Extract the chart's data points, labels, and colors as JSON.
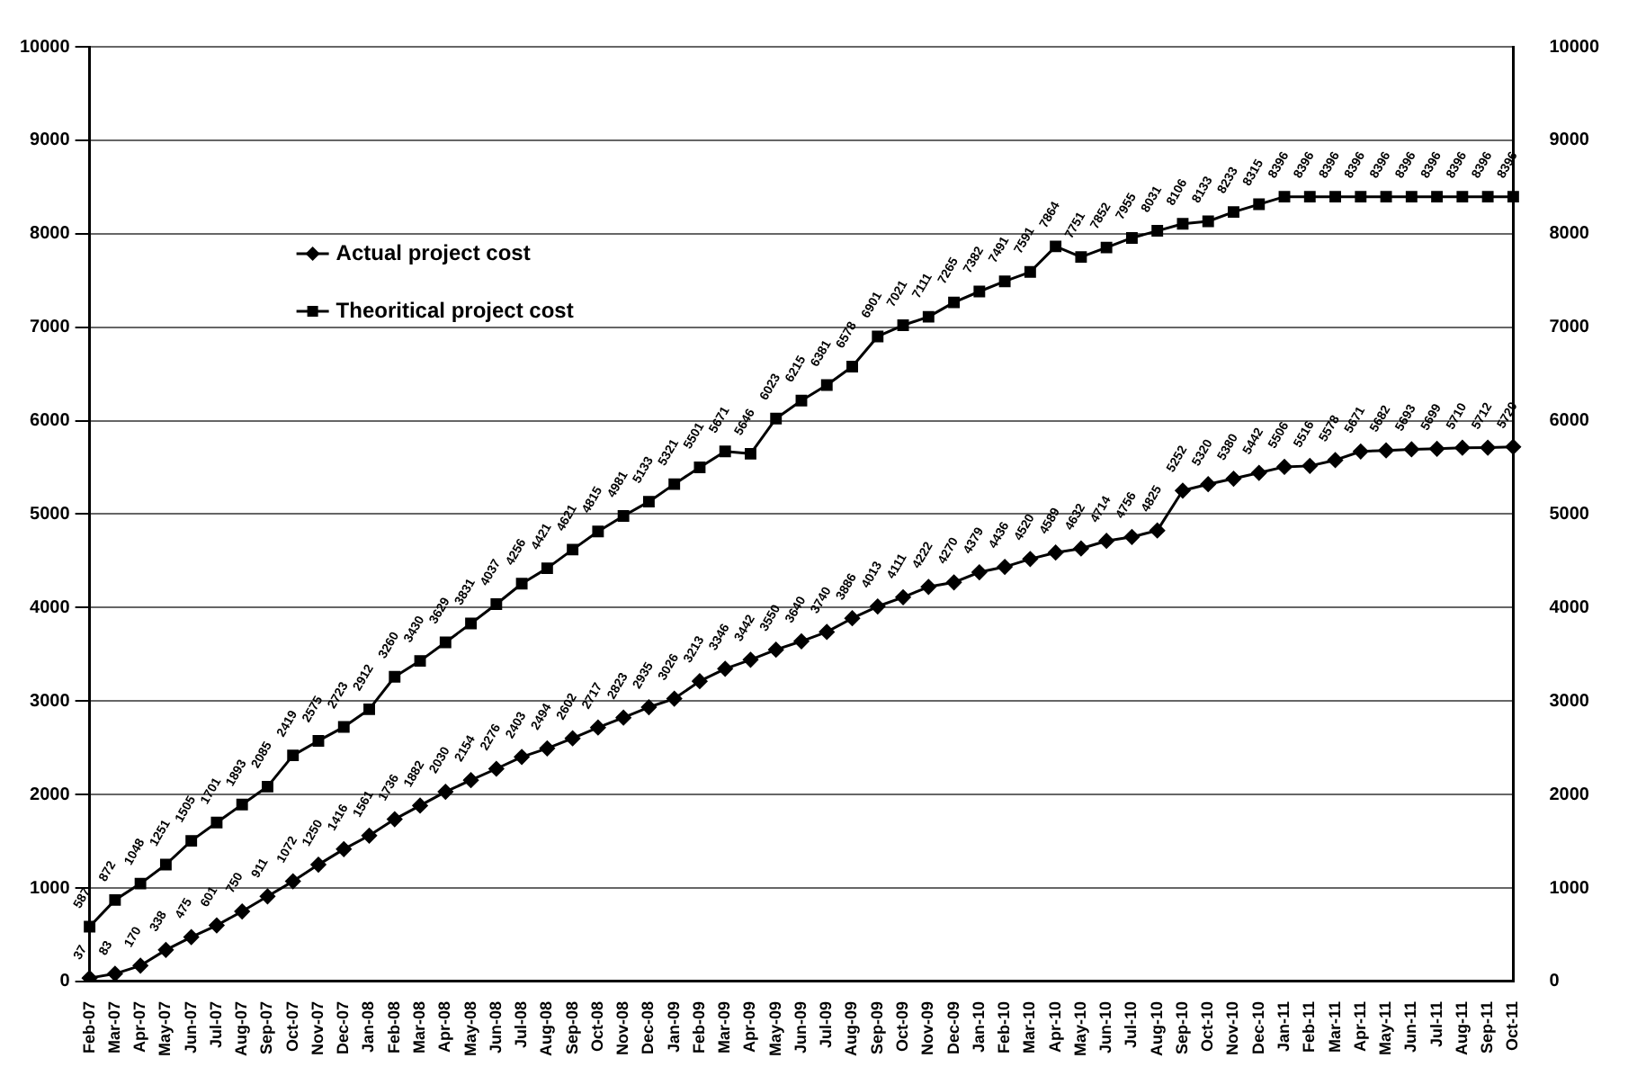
{
  "chart_data": {
    "type": "line",
    "categories": [
      "Feb-07",
      "Mar-07",
      "Apr-07",
      "May-07",
      "Jun-07",
      "Jul-07",
      "Aug-07",
      "Sep-07",
      "Oct-07",
      "Nov-07",
      "Dec-07",
      "Jan-08",
      "Feb-08",
      "Mar-08",
      "Apr-08",
      "May-08",
      "Jun-08",
      "Jul-08",
      "Aug-08",
      "Sep-08",
      "Oct-08",
      "Nov-08",
      "Dec-08",
      "Jan-09",
      "Feb-09",
      "Mar-09",
      "Apr-09",
      "May-09",
      "Jun-09",
      "Jul-09",
      "Aug-09",
      "Sep-09",
      "Oct-09",
      "Nov-09",
      "Dec-09",
      "Jan-10",
      "Feb-10",
      "Mar-10",
      "Apr-10",
      "May-10",
      "Jun-10",
      "Jul-10",
      "Aug-10",
      "Sep-10",
      "Oct-10",
      "Nov-10",
      "Dec-10",
      "Jan-11",
      "Feb-11",
      "Mar-11",
      "Apr-11",
      "May-11",
      "Jun-11",
      "Jul-11",
      "Aug-11",
      "Sep-11",
      "Oct-11"
    ],
    "series": [
      {
        "name": "Actual project cost",
        "color": "#000000",
        "marker": "diamond",
        "values": [
          37,
          83,
          170,
          338,
          475,
          601,
          750,
          911,
          1072,
          1250,
          1416,
          1561,
          1736,
          1882,
          2030,
          2154,
          2276,
          2403,
          2494,
          2602,
          2717,
          2823,
          2935,
          3026,
          3213,
          3346,
          3442,
          3550,
          3640,
          3740,
          3886,
          4013,
          4111,
          4222,
          4270,
          4379,
          4436,
          4520,
          4589,
          4632,
          4714,
          4756,
          4825,
          5252,
          5320,
          5380,
          5442,
          5506,
          5516,
          5578,
          5671,
          5682,
          5693,
          5699,
          5710,
          5712,
          5720
        ]
      },
      {
        "name": "Theoritical project cost",
        "color": "#000000",
        "marker": "square",
        "values": [
          587,
          872,
          1048,
          1251,
          1505,
          1701,
          1893,
          2085,
          2419,
          2575,
          2723,
          2912,
          3260,
          3430,
          3629,
          3831,
          4037,
          4256,
          4421,
          4621,
          4815,
          4981,
          5133,
          5321,
          5501,
          5671,
          5646,
          6023,
          6215,
          6381,
          6578,
          6901,
          7021,
          7111,
          7265,
          7382,
          7491,
          7591,
          7864,
          7751,
          7852,
          7955,
          8031,
          8106,
          8133,
          8233,
          8315,
          8396,
          8396,
          8396,
          8396,
          8396,
          8396,
          8396,
          8396,
          8396,
          8396
        ]
      }
    ],
    "ylim": [
      0,
      10000
    ],
    "yticks": [
      0,
      1000,
      2000,
      3000,
      4000,
      5000,
      6000,
      7000,
      8000,
      9000,
      10000
    ],
    "y2lim": [
      0,
      10000
    ],
    "y2ticks": [
      0,
      1000,
      2000,
      3000,
      4000,
      5000,
      6000,
      7000,
      8000,
      9000,
      10000
    ],
    "grid": "y",
    "legend": "top left",
    "data_labels": true,
    "line_style": "solid"
  }
}
